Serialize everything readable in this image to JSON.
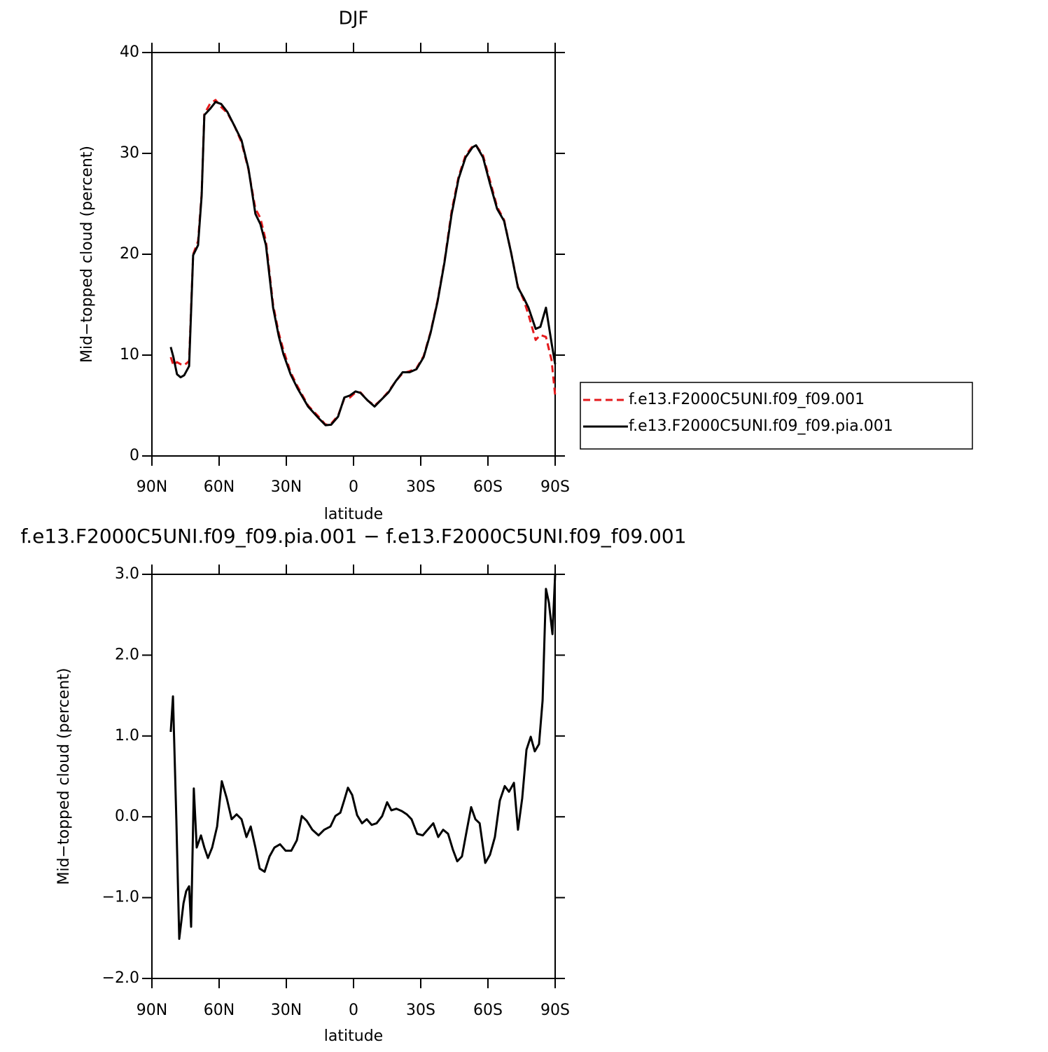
{
  "chart_data": [
    {
      "type": "line",
      "title": "DJF",
      "xlabel": "latitude",
      "ylabel": "Mid−topped cloud (percent)",
      "x": [
        81.6,
        80.4,
        78.8,
        77.2,
        75.6,
        73.4,
        71.6,
        69.4,
        67.8,
        66.6,
        64.1,
        61.6,
        59.1,
        56.3,
        53.1,
        50,
        46.9,
        43.8,
        41.6,
        39.1,
        35.9,
        33.4,
        31.3,
        28.1,
        25,
        20.3,
        15.6,
        12.5,
        10,
        6.9,
        4.1,
        1.6,
        -0.9,
        -3.1,
        -6.3,
        -9.4,
        -12.5,
        -15.6,
        -18.8,
        -21.9,
        -25,
        -28.1,
        -31.3,
        -34.4,
        -37.5,
        -40.6,
        -43.8,
        -46.9,
        -50,
        -53.1,
        -54.7,
        -57.8,
        -60.9,
        -64.1,
        -67.2,
        -70.3,
        -73.4,
        -75.9,
        -78.1,
        -81.3,
        -83.4,
        -85.9,
        -88.4,
        -90
      ],
      "series": [
        {
          "name": "f.e13.F2000C5UNI.f09_f09.001",
          "color": "#e41a1c",
          "dash": true,
          "values": [
            9.8,
            9.0,
            9.3,
            9.1,
            9.0,
            9.4,
            20.0,
            21.3,
            26.0,
            33.9,
            34.9,
            35.3,
            34.6,
            34.0,
            32.7,
            31.1,
            28.4,
            24.5,
            23.6,
            21.3,
            15.0,
            12.2,
            10.5,
            8.3,
            6.9,
            5.0,
            3.9,
            3.1,
            3.2,
            4.0,
            5.7,
            5.8,
            6.3,
            6.3,
            5.5,
            5.0,
            5.6,
            6.4,
            7.4,
            8.2,
            8.4,
            8.7,
            9.9,
            12.3,
            15.4,
            19.3,
            24.3,
            27.7,
            29.8,
            30.7,
            30.8,
            29.8,
            27.3,
            24.7,
            23.4,
            20.2,
            16.8,
            15.5,
            14.0,
            11.5,
            12.0,
            11.8,
            9.5,
            6.0
          ]
        },
        {
          "name": "f.e13.F2000C5UNI.f09_f09.pia.001",
          "color": "#000000",
          "dash": false,
          "values": [
            10.8,
            9.8,
            8.1,
            7.8,
            8.0,
            8.9,
            19.9,
            20.9,
            25.8,
            33.8,
            34.4,
            35.1,
            34.9,
            34.1,
            32.7,
            31.3,
            28.5,
            24.0,
            23.0,
            20.9,
            14.7,
            11.9,
            10.1,
            8.1,
            6.7,
            4.9,
            3.75,
            3.05,
            3.1,
            3.9,
            5.8,
            6.0,
            6.4,
            6.25,
            5.5,
            4.9,
            5.6,
            6.3,
            7.4,
            8.3,
            8.3,
            8.6,
            9.8,
            12.2,
            15.3,
            19.2,
            24.0,
            27.5,
            29.6,
            30.6,
            30.8,
            29.6,
            27.0,
            24.5,
            23.3,
            20.2,
            16.7,
            15.7,
            14.7,
            12.6,
            12.8,
            14.7,
            11.2,
            9.1
          ]
        }
      ],
      "xlim": [
        90,
        -90
      ],
      "xticks": [
        {
          "value": 90,
          "label": "90N"
        },
        {
          "value": 60,
          "label": "60N"
        },
        {
          "value": 30,
          "label": "30N"
        },
        0,
        {
          "value": -30,
          "label": "30S"
        },
        {
          "value": -60,
          "label": "60S"
        },
        {
          "value": -90,
          "label": "90S"
        }
      ],
      "ylim": [
        0,
        40
      ],
      "yticks": [
        0,
        10,
        20,
        30,
        40
      ],
      "legend": "right"
    },
    {
      "type": "line",
      "title": "f.e13.F2000C5UNI.f09_f09.pia.001 − f.e13.F2000C5UNI.f09_f09.001",
      "xlabel": "latitude",
      "ylabel": "Mid−topped cloud (percent)",
      "x": [
        81.6,
        80.6,
        79.1,
        77.8,
        75.9,
        74.7,
        73.4,
        72.5,
        71.3,
        70,
        68.1,
        66.6,
        65,
        63.1,
        60.9,
        58.8,
        56.6,
        54.4,
        52.2,
        50,
        47.8,
        45.9,
        43.8,
        41.9,
        39.7,
        37.5,
        35.3,
        32.8,
        30.3,
        27.8,
        25.3,
        23.1,
        20.9,
        18.4,
        15.6,
        13.1,
        10.3,
        8.1,
        5.9,
        4.1,
        2.5,
        0.6,
        -1.6,
        -3.8,
        -5.9,
        -8.1,
        -10.3,
        -12.8,
        -15,
        -16.9,
        -19.1,
        -21.6,
        -23.8,
        -25.9,
        -28.4,
        -30.9,
        -33.4,
        -35.6,
        -37.8,
        -40,
        -42.2,
        -44.4,
        -46.3,
        -48.4,
        -50.6,
        -52.5,
        -54.4,
        -56.3,
        -58.8,
        -60.9,
        -63.1,
        -65.3,
        -67.5,
        -69.4,
        -71.6,
        -73.4,
        -75.3,
        -77.2,
        -79.1,
        -80.9,
        -82.8,
        -84.4,
        -85.9,
        -87.2,
        -88.8,
        -90
      ],
      "series": [
        {
          "color": "#000000",
          "dash": false,
          "values": [
            1.05,
            1.49,
            -0.03,
            -1.51,
            -1.07,
            -0.92,
            -0.86,
            -1.36,
            0.35,
            -0.38,
            -0.23,
            -0.38,
            -0.51,
            -0.38,
            -0.12,
            0.44,
            0.23,
            -0.03,
            0.03,
            -0.03,
            -0.25,
            -0.12,
            -0.38,
            -0.64,
            -0.68,
            -0.49,
            -0.38,
            -0.34,
            -0.42,
            -0.42,
            -0.29,
            0.01,
            -0.05,
            -0.16,
            -0.23,
            -0.16,
            -0.12,
            0.01,
            0.05,
            0.21,
            0.36,
            0.27,
            0.02,
            -0.08,
            -0.03,
            -0.1,
            -0.08,
            0.01,
            0.18,
            0.08,
            0.1,
            0.07,
            0.03,
            -0.03,
            -0.21,
            -0.23,
            -0.15,
            -0.08,
            -0.25,
            -0.16,
            -0.21,
            -0.41,
            -0.55,
            -0.49,
            -0.16,
            0.12,
            -0.03,
            -0.08,
            -0.57,
            -0.47,
            -0.25,
            0.2,
            0.38,
            0.31,
            0.42,
            -0.16,
            0.23,
            0.83,
            0.99,
            0.81,
            0.9,
            1.44,
            2.82,
            2.65,
            2.26,
            3.0
          ]
        }
      ],
      "xlim": [
        90,
        -90
      ],
      "xticks": [
        {
          "value": 90,
          "label": "90N"
        },
        {
          "value": 60,
          "label": "60N"
        },
        {
          "value": 30,
          "label": "30N"
        },
        0,
        {
          "value": -30,
          "label": "30S"
        },
        {
          "value": -60,
          "label": "60S"
        },
        {
          "value": -90,
          "label": "90S"
        }
      ],
      "ylim": [
        -2,
        3
      ],
      "yticks": [
        {
          "value": -2,
          "label": "−2.0"
        },
        {
          "value": -1,
          "label": "−1.0"
        },
        {
          "value": 0,
          "label": "0.0"
        },
        {
          "value": 1,
          "label": "1.0"
        },
        {
          "value": 2,
          "label": "2.0"
        },
        {
          "value": 3,
          "label": "3.0"
        }
      ]
    }
  ]
}
